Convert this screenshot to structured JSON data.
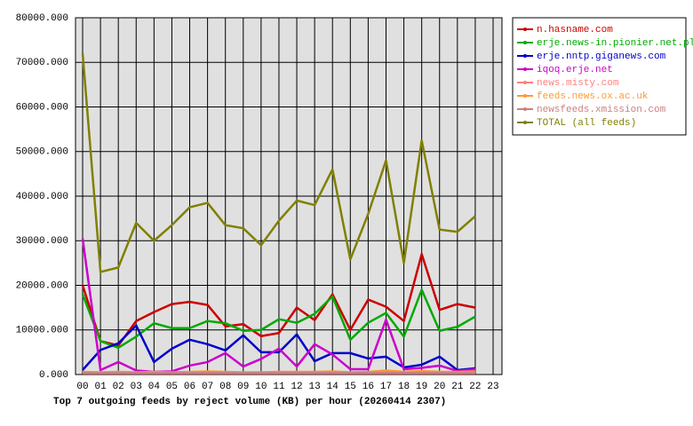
{
  "chart_data": {
    "type": "line",
    "title": "Top 7 outgoing feeds by reject volume (KB) per hour (20260414 2307)",
    "categories": [
      "00",
      "01",
      "02",
      "03",
      "04",
      "05",
      "06",
      "07",
      "08",
      "09",
      "10",
      "11",
      "12",
      "13",
      "14",
      "15",
      "16",
      "17",
      "18",
      "19",
      "20",
      "21",
      "22",
      "23"
    ],
    "series": [
      {
        "name": "n.hasname.com",
        "color": "#cc0000",
        "values": [
          20000,
          7500,
          6500,
          12000,
          14000,
          15800,
          16300,
          15600,
          10800,
          11300,
          8600,
          9300,
          15000,
          12200,
          18000,
          10000,
          16800,
          15200,
          12000,
          27000,
          14500,
          15800,
          15000,
          null
        ]
      },
      {
        "name": "erje.news-in.pionier.net.pl",
        "color": "#00aa00",
        "values": [
          18000,
          7500,
          6000,
          8500,
          11500,
          10400,
          10400,
          12000,
          11500,
          9800,
          10000,
          12400,
          11600,
          13600,
          17500,
          7800,
          11600,
          13800,
          8500,
          19000,
          9800,
          10700,
          13000,
          null
        ]
      },
      {
        "name": "erje.nntp.giganews.com",
        "color": "#0000cc",
        "values": [
          1000,
          5500,
          7000,
          11000,
          2800,
          5800,
          7800,
          6800,
          5400,
          8800,
          5000,
          5000,
          9000,
          3000,
          4800,
          4800,
          3600,
          4000,
          1600,
          2200,
          4000,
          1000,
          1400,
          null
        ]
      },
      {
        "name": "iqoq.erje.net",
        "color": "#cc00cc",
        "values": [
          30500,
          1000,
          2800,
          900,
          600,
          700,
          2000,
          2800,
          4800,
          1800,
          3500,
          5800,
          1800,
          6800,
          4500,
          1200,
          1200,
          12300,
          1200,
          1500,
          2000,
          800,
          1200,
          null
        ]
      },
      {
        "name": "news.misty.com",
        "color": "#ff8080",
        "values": [
          300,
          300,
          300,
          300,
          300,
          300,
          300,
          300,
          300,
          300,
          300,
          300,
          300,
          300,
          300,
          300,
          300,
          300,
          300,
          300,
          300,
          300,
          300,
          null
        ]
      },
      {
        "name": "feeds.news.ox.ac.uk",
        "color": "#ff9933",
        "values": [
          600,
          500,
          600,
          500,
          600,
          500,
          600,
          700,
          600,
          500,
          500,
          600,
          600,
          600,
          700,
          500,
          600,
          900,
          600,
          800,
          600,
          600,
          700,
          null
        ]
      },
      {
        "name": "newsfeeds.xmission.com",
        "color": "#cc8080",
        "values": [
          400,
          400,
          400,
          400,
          400,
          400,
          400,
          400,
          400,
          400,
          400,
          400,
          400,
          400,
          400,
          400,
          400,
          400,
          400,
          400,
          400,
          400,
          400,
          null
        ]
      },
      {
        "name": "TOTAL (all feeds)",
        "color": "#808000",
        "values": [
          72000,
          23000,
          24000,
          34000,
          30000,
          33500,
          37500,
          38500,
          33500,
          32800,
          29000,
          34500,
          39000,
          38000,
          46000,
          25800,
          36000,
          48000,
          25000,
          52500,
          32500,
          32000,
          35500,
          null
        ]
      }
    ],
    "ylim": [
      0,
      80000
    ],
    "yticks": [
      {
        "value": 0,
        "label": "0.000"
      },
      {
        "value": 10000,
        "label": "10000.000"
      },
      {
        "value": 20000,
        "label": "20000.000"
      },
      {
        "value": 30000,
        "label": "30000.000"
      },
      {
        "value": 40000,
        "label": "40000.000"
      },
      {
        "value": 50000,
        "label": "50000.000"
      },
      {
        "value": 60000,
        "label": "60000.000"
      },
      {
        "value": 70000,
        "label": "70000.000"
      },
      {
        "value": 80000,
        "label": "80000.000"
      }
    ],
    "grid": true,
    "legend": "right"
  }
}
